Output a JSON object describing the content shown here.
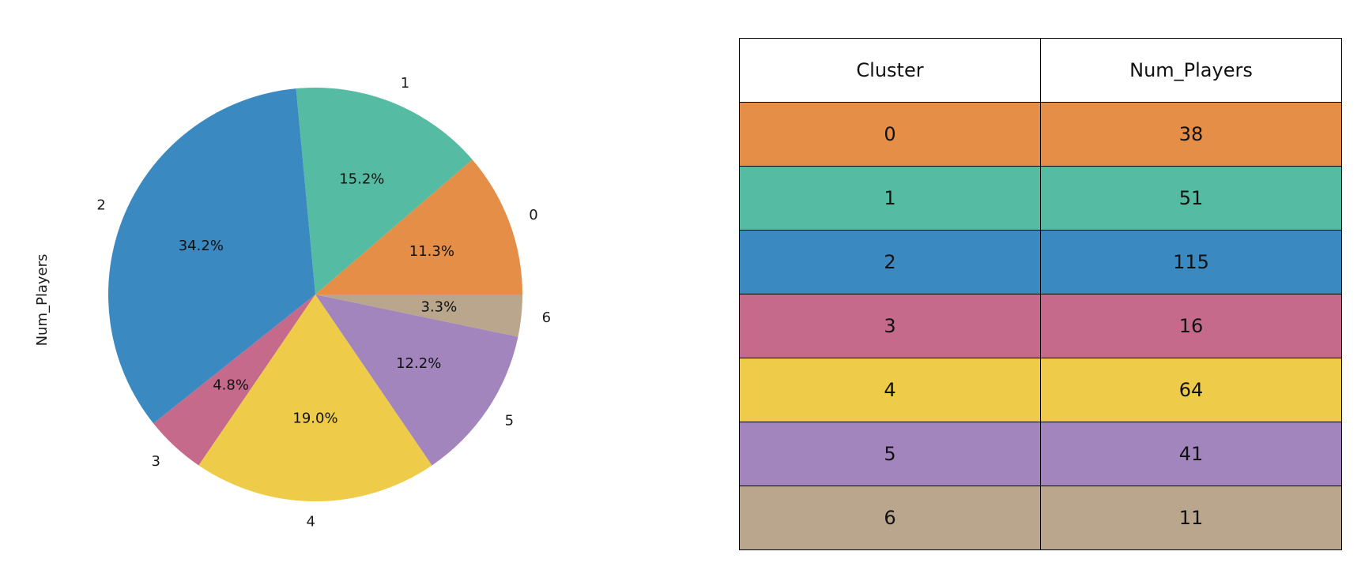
{
  "chart_data": [
    {
      "type": "pie",
      "ylabel": "Num_Players",
      "labels": [
        "0",
        "1",
        "2",
        "3",
        "4",
        "5",
        "6"
      ],
      "values": [
        38,
        51,
        115,
        16,
        64,
        41,
        11
      ],
      "percent_labels": [
        "11.3%",
        "15.2%",
        "34.2%",
        "4.8%",
        "19.0%",
        "12.2%",
        "3.3%"
      ],
      "colors": [
        "#e58e47",
        "#56bba3",
        "#3a89c1",
        "#c66a8b",
        "#eecb48",
        "#a285bd",
        "#b9a68c"
      ],
      "start_angle_deg": 0,
      "direction": "counterclockwise"
    },
    {
      "type": "table",
      "columns": [
        "Cluster",
        "Num_Players"
      ],
      "rows": [
        [
          "0",
          "38"
        ],
        [
          "1",
          "51"
        ],
        [
          "2",
          "115"
        ],
        [
          "3",
          "16"
        ],
        [
          "4",
          "64"
        ],
        [
          "5",
          "41"
        ],
        [
          "6",
          "11"
        ]
      ],
      "row_colors": [
        "#e58e47",
        "#56bba3",
        "#3a89c1",
        "#c66a8b",
        "#eecb48",
        "#a285bd",
        "#b9a68c"
      ]
    }
  ]
}
